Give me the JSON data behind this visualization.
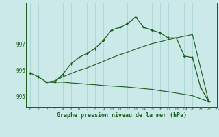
{
  "title": "Graphe pression niveau de la mer (hPa)",
  "background_color": "#cce9e9",
  "grid_color": "#aad4d4",
  "line_color": "#1a5c1a",
  "xlim": [
    -0.5,
    23
  ],
  "ylim": [
    994.6,
    998.6
  ],
  "yticks": [
    995,
    996,
    997
  ],
  "xtick_labels": [
    "0",
    "1",
    "2",
    "3",
    "4",
    "5",
    "6",
    "7",
    "8",
    "9",
    "10",
    "11",
    "12",
    "13",
    "14",
    "15",
    "16",
    "17",
    "18",
    "19",
    "20",
    "21",
    "22",
    "23"
  ],
  "series1_x": [
    0,
    1,
    2,
    3,
    4,
    5,
    6,
    7,
    8,
    9,
    10,
    11,
    12,
    13,
    14,
    15,
    16,
    17,
    18,
    19,
    20,
    21,
    22
  ],
  "series1_y": [
    995.9,
    995.75,
    995.55,
    995.55,
    995.85,
    996.25,
    996.5,
    996.65,
    996.85,
    997.15,
    997.55,
    997.65,
    997.8,
    998.05,
    997.65,
    997.55,
    997.45,
    997.25,
    997.25,
    996.55,
    996.5,
    995.35,
    994.8
  ],
  "series2_x": [
    2,
    3,
    4,
    5,
    6,
    7,
    8,
    9,
    10,
    11,
    12,
    13,
    14,
    15,
    16,
    17,
    18,
    19,
    20,
    22
  ],
  "series2_y": [
    995.55,
    995.6,
    995.75,
    995.88,
    996.0,
    996.1,
    996.22,
    996.35,
    996.48,
    996.6,
    996.7,
    996.82,
    996.93,
    997.03,
    997.1,
    997.18,
    997.25,
    997.32,
    997.38,
    994.8
  ],
  "series3_x": [
    2,
    3,
    4,
    5,
    6,
    7,
    8,
    9,
    10,
    11,
    12,
    13,
    14,
    15,
    16,
    17,
    18,
    19,
    20,
    22
  ],
  "series3_y": [
    995.55,
    995.55,
    995.55,
    995.52,
    995.5,
    995.47,
    995.45,
    995.42,
    995.4,
    995.38,
    995.36,
    995.33,
    995.3,
    995.27,
    995.22,
    995.18,
    995.13,
    995.08,
    995.03,
    994.8
  ]
}
